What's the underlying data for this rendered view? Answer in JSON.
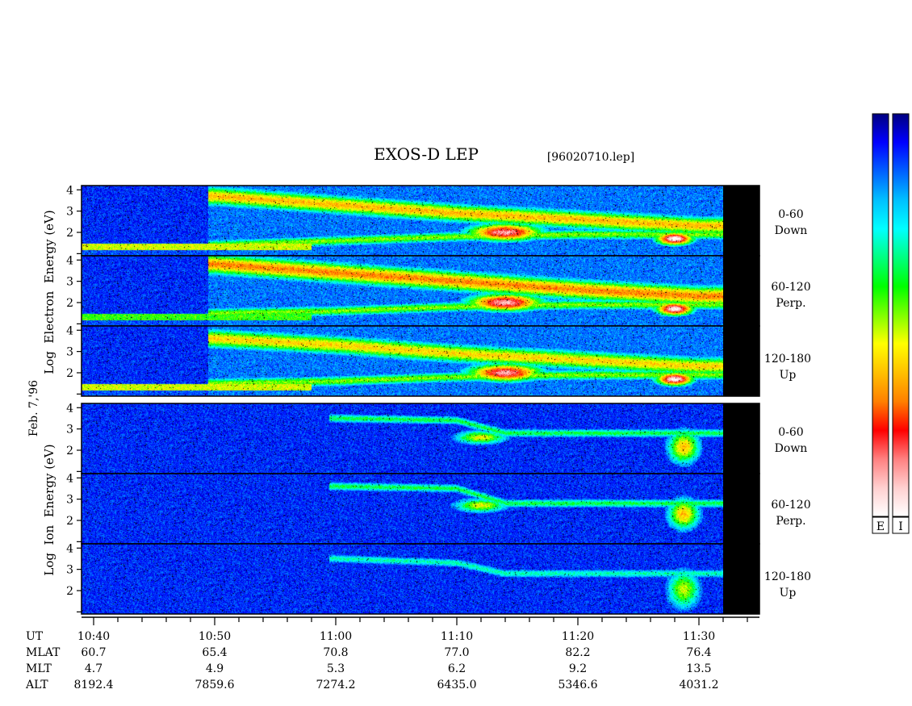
{
  "title": "EXOS-D LEP",
  "filename": "[96020710.lep]",
  "date_label": "Feb. 7,'96",
  "electron_ylabel": "Log  Electron  Energy (eV)",
  "ion_ylabel": "Log  Ion  Energy (eV)",
  "y_ticks": [
    "4",
    "3",
    "2"
  ],
  "panel_labels": [
    {
      "range": "0-60",
      "dir": "Down"
    },
    {
      "range": "60-120",
      "dir": "Perp."
    },
    {
      "range": "120-180",
      "dir": "Up"
    }
  ],
  "colorbar_labels": [
    "E",
    "I"
  ],
  "colors": {
    "scale": [
      "#000080",
      "#0000ff",
      "#0060ff",
      "#00c0ff",
      "#00ffff",
      "#00ff80",
      "#00ff00",
      "#80ff00",
      "#ffff00",
      "#ffc000",
      "#ff8000",
      "#ff0000",
      "#ff8080",
      "#ffd0d0",
      "#ffffff"
    ]
  },
  "time_axis": {
    "row_labels": [
      "UT",
      "MLAT",
      "MLT",
      "ALT"
    ],
    "ticks": [
      {
        "ut": "10:40",
        "mlat": "60.7",
        "mlt": "4.7",
        "alt": "8192.4"
      },
      {
        "ut": "10:50",
        "mlat": "65.4",
        "mlt": "4.9",
        "alt": "7859.6"
      },
      {
        "ut": "11:00",
        "mlat": "70.8",
        "mlt": "5.3",
        "alt": "7274.2"
      },
      {
        "ut": "11:10",
        "mlat": "77.0",
        "mlt": "6.2",
        "alt": "6435.0"
      },
      {
        "ut": "11:20",
        "mlat": "82.2",
        "mlt": "9.2",
        "alt": "5346.6"
      },
      {
        "ut": "11:30",
        "mlat": "76.4",
        "mlt": "13.5",
        "alt": "4031.2"
      }
    ]
  },
  "chart_data": {
    "type": "heatmap",
    "title": "EXOS-D LEP",
    "x_range_min": [
      -1,
      55
    ],
    "data_end_min": 52,
    "ylim_log_eV": [
      0.9,
      4.2
    ],
    "species": [
      {
        "name": "Electron",
        "panels": [
          {
            "angle": "0-60",
            "dir": "Down",
            "features": [
              {
                "kind": "line",
                "pts": [
                  [
                    10,
                    3.7
                  ],
                  [
                    20,
                    3.3
                  ],
                  [
                    30,
                    2.9
                  ],
                  [
                    40,
                    2.6
                  ],
                  [
                    50,
                    2.3
                  ]
                ],
                "width": 0.45,
                "level": 0.65
              },
              {
                "kind": "line",
                "pts": [
                  [
                    10,
                    1.4
                  ],
                  [
                    20,
                    1.6
                  ],
                  [
                    30,
                    1.8
                  ],
                  [
                    40,
                    1.9
                  ],
                  [
                    50,
                    1.9
                  ]
                ],
                "width": 0.25,
                "level": 0.5
              },
              {
                "kind": "blob",
                "t": [
                  31,
                  37
                ],
                "y": [
                  1.6,
                  2.4
                ],
                "level": 0.9
              },
              {
                "kind": "blob",
                "t": [
                  46.5,
                  49.5
                ],
                "y": [
                  1.4,
                  2.0
                ],
                "level": 1.0
              },
              {
                "kind": "floor",
                "t": [
                  -1,
                  18
                ],
                "y": 1.3,
                "level": 0.55
              }
            ]
          },
          {
            "angle": "60-120",
            "dir": "Perp.",
            "features": [
              {
                "kind": "line",
                "pts": [
                  [
                    10,
                    3.8
                  ],
                  [
                    20,
                    3.4
                  ],
                  [
                    30,
                    3.0
                  ],
                  [
                    40,
                    2.6
                  ],
                  [
                    50,
                    2.3
                  ]
                ],
                "width": 0.5,
                "level": 0.7
              },
              {
                "kind": "line",
                "pts": [
                  [
                    10,
                    1.5
                  ],
                  [
                    20,
                    1.6
                  ],
                  [
                    30,
                    1.8
                  ],
                  [
                    40,
                    1.9
                  ],
                  [
                    50,
                    1.9
                  ]
                ],
                "width": 0.25,
                "level": 0.5
              },
              {
                "kind": "blob",
                "t": [
                  31,
                  37
                ],
                "y": [
                  1.6,
                  2.4
                ],
                "level": 0.92
              },
              {
                "kind": "blob",
                "t": [
                  46.5,
                  49.5
                ],
                "y": [
                  1.4,
                  2.0
                ],
                "level": 1.0
              },
              {
                "kind": "floor",
                "t": [
                  -1,
                  18
                ],
                "y": 1.3,
                "level": 0.45
              }
            ]
          },
          {
            "angle": "120-180",
            "dir": "Up",
            "features": [
              {
                "kind": "line",
                "pts": [
                  [
                    10,
                    3.6
                  ],
                  [
                    20,
                    3.3
                  ],
                  [
                    30,
                    2.9
                  ],
                  [
                    40,
                    2.6
                  ],
                  [
                    50,
                    2.3
                  ]
                ],
                "width": 0.45,
                "level": 0.62
              },
              {
                "kind": "line",
                "pts": [
                  [
                    10,
                    1.5
                  ],
                  [
                    20,
                    1.6
                  ],
                  [
                    30,
                    1.8
                  ],
                  [
                    40,
                    1.9
                  ],
                  [
                    50,
                    1.9
                  ]
                ],
                "width": 0.25,
                "level": 0.5
              },
              {
                "kind": "blob",
                "t": [
                  31,
                  37
                ],
                "y": [
                  1.6,
                  2.4
                ],
                "level": 0.9
              },
              {
                "kind": "blob",
                "t": [
                  46.5,
                  49.5
                ],
                "y": [
                  1.4,
                  2.0
                ],
                "level": 1.0
              },
              {
                "kind": "floor",
                "t": [
                  -1,
                  18
                ],
                "y": 1.3,
                "level": 0.55
              }
            ]
          }
        ]
      },
      {
        "name": "Ion",
        "panels": [
          {
            "angle": "0-60",
            "dir": "Down",
            "features": [
              {
                "kind": "line",
                "pts": [
                  [
                    20,
                    3.5
                  ],
                  [
                    30,
                    3.4
                  ],
                  [
                    34,
                    2.8
                  ]
                ],
                "width": 0.2,
                "level": 0.4
              },
              {
                "kind": "blob",
                "t": [
                  30,
                  34
                ],
                "y": [
                  2.3,
                  2.9
                ],
                "level": 0.58
              },
              {
                "kind": "blob",
                "t": [
                  47.5,
                  50
                ],
                "y": [
                  1.4,
                  2.9
                ],
                "level": 0.65
              }
            ]
          },
          {
            "angle": "60-120",
            "dir": "Perp.",
            "features": [
              {
                "kind": "line",
                "pts": [
                  [
                    20,
                    3.6
                  ],
                  [
                    30,
                    3.5
                  ],
                  [
                    34,
                    2.8
                  ]
                ],
                "width": 0.2,
                "level": 0.4
              },
              {
                "kind": "blob",
                "t": [
                  30,
                  34
                ],
                "y": [
                  2.4,
                  3.0
                ],
                "level": 0.58
              },
              {
                "kind": "blob",
                "t": [
                  47.5,
                  50
                ],
                "y": [
                  1.6,
                  3.0
                ],
                "level": 0.65
              }
            ]
          },
          {
            "angle": "120-180",
            "dir": "Up",
            "features": [
              {
                "kind": "line",
                "pts": [
                  [
                    20,
                    3.5
                  ],
                  [
                    30,
                    3.3
                  ],
                  [
                    34,
                    2.8
                  ]
                ],
                "width": 0.2,
                "level": 0.33
              },
              {
                "kind": "blob",
                "t": [
                  47.5,
                  50
                ],
                "y": [
                  1.2,
                  2.9
                ],
                "level": 0.55
              }
            ]
          }
        ]
      }
    ],
    "colorbar": {
      "labels": [
        "E",
        "I"
      ],
      "orientation": "vertical"
    }
  }
}
